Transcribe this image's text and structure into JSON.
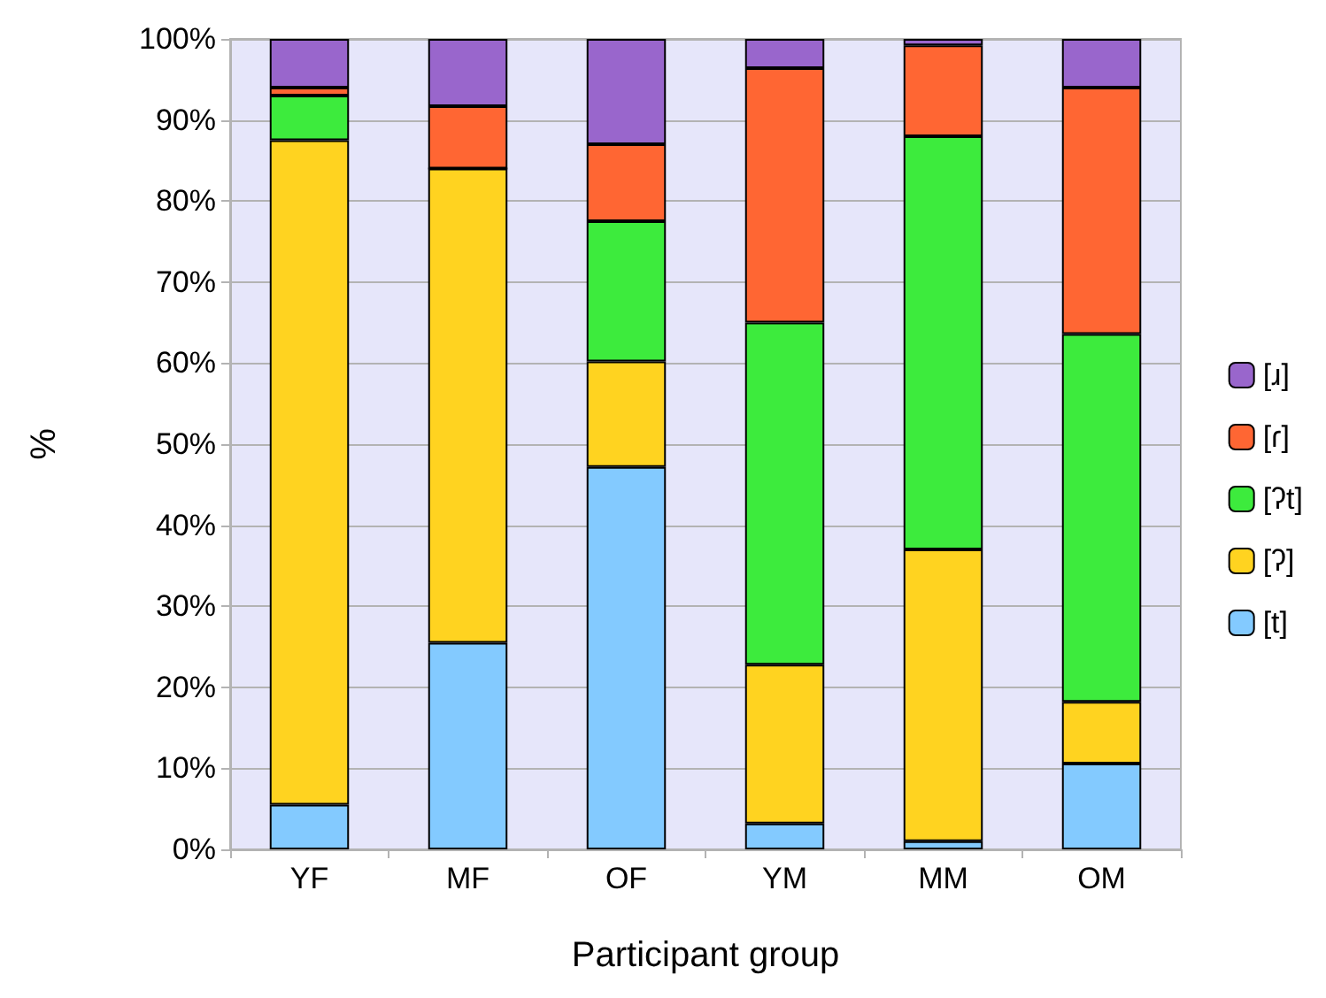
{
  "chart_data": {
    "type": "bar",
    "stacked": true,
    "xlabel": "Participant group",
    "ylabel": "%",
    "categories": [
      "YF",
      "MF",
      "OF",
      "YM",
      "MM",
      "OM"
    ],
    "series": [
      {
        "name": "[t]",
        "color": "#83caff",
        "values": [
          5.5,
          25.5,
          47.2,
          3.2,
          1,
          10.6
        ]
      },
      {
        "name": "[ʔ]",
        "color": "#ffd320",
        "values": [
          82,
          58.5,
          13,
          19.6,
          36,
          7.6
        ]
      },
      {
        "name": "[ʔt]",
        "color": "#3deb3d",
        "values": [
          5.5,
          0,
          17.3,
          42.2,
          51,
          45.4
        ]
      },
      {
        "name": "[ɾ]",
        "color": "#ff6633",
        "values": [
          1,
          7.7,
          9.5,
          31.4,
          11.2,
          30.4
        ]
      },
      {
        "name": "[ɹ]",
        "color": "#9966cc",
        "values": [
          6,
          8.3,
          13,
          3.6,
          0.8,
          6
        ]
      }
    ],
    "ylim": [
      0,
      100
    ],
    "yticks": [
      {
        "value": 0,
        "label": "0%"
      },
      {
        "value": 10,
        "label": "10%"
      },
      {
        "value": 20,
        "label": "20%"
      },
      {
        "value": 30,
        "label": "30%"
      },
      {
        "value": 40,
        "label": "40%"
      },
      {
        "value": 50,
        "label": "50%"
      },
      {
        "value": 60,
        "label": "60%"
      },
      {
        "value": 70,
        "label": "70%"
      },
      {
        "value": 80,
        "label": "80%"
      },
      {
        "value": 90,
        "label": "90%"
      },
      {
        "value": 100,
        "label": "100%"
      }
    ],
    "grid": "y",
    "legend": "right"
  }
}
